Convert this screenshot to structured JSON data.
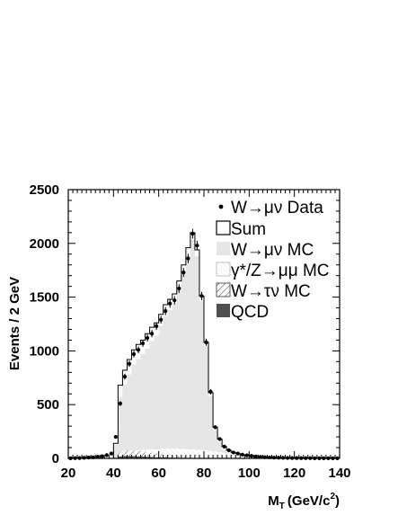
{
  "chart_data": {
    "type": "bar",
    "subtype": "stacked-histogram-with-data-points",
    "xlabel": "M",
    "xlabel_sub": "T",
    "xlabel_units": "(GeV/c",
    "xlabel_units_sup": "2",
    "xlabel_units_close": ")",
    "ylabel": "Events / 2 GeV",
    "xlim": [
      20,
      140
    ],
    "ylim": [
      0,
      2500
    ],
    "xticks": [
      "20",
      "40",
      "60",
      "80",
      "100",
      "120",
      "140"
    ],
    "yticks": [
      "0",
      "500",
      "1000",
      "1500",
      "2000",
      "2500"
    ],
    "bin_width": 2,
    "bin_centers": [
      21,
      23,
      25,
      27,
      29,
      31,
      33,
      35,
      37,
      39,
      41,
      43,
      45,
      47,
      49,
      51,
      53,
      55,
      57,
      59,
      61,
      63,
      65,
      67,
      69,
      71,
      73,
      75,
      77,
      79,
      81,
      83,
      85,
      87,
      89,
      91,
      93,
      95,
      97,
      99,
      101,
      103,
      105,
      107,
      109,
      111,
      113,
      115,
      117,
      119,
      121,
      123,
      125,
      127,
      129,
      131,
      133,
      135,
      137,
      139
    ],
    "series": [
      {
        "name": "W→μν Data",
        "values": [
          1,
          2,
          3,
          5,
          8,
          10,
          15,
          20,
          30,
          45,
          200,
          510,
          760,
          880,
          970,
          1010,
          1070,
          1120,
          1160,
          1230,
          1290,
          1370,
          1440,
          1470,
          1580,
          1730,
          1860,
          2090,
          1980,
          1510,
          1080,
          620,
          290,
          180,
          110,
          75,
          55,
          45,
          35,
          28,
          23,
          18,
          14,
          11,
          9,
          7,
          6,
          5,
          4,
          3,
          3,
          2,
          2,
          2,
          1,
          1,
          1,
          1,
          1,
          1
        ]
      },
      {
        "name": "Sum",
        "values": [
          0,
          0,
          0,
          0,
          0,
          0,
          0,
          0,
          0,
          0,
          140,
          680,
          820,
          920,
          1010,
          1060,
          1100,
          1160,
          1220,
          1260,
          1340,
          1430,
          1480,
          1530,
          1650,
          1800,
          1960,
          2100,
          1940,
          1510,
          1080,
          610,
          290,
          180,
          110,
          75,
          55,
          45,
          35,
          28,
          23,
          18,
          14,
          11,
          9,
          7,
          6,
          5,
          4,
          3,
          3,
          2,
          2,
          2,
          1,
          1,
          1,
          1,
          1,
          1
        ]
      },
      {
        "name": "W→μν MC",
        "values": [
          0,
          0,
          0,
          0,
          0,
          0,
          0,
          0,
          0,
          0,
          125,
          570,
          690,
          780,
          870,
          920,
          970,
          1020,
          1090,
          1140,
          1230,
          1320,
          1380,
          1440,
          1560,
          1720,
          1880,
          2030,
          1880,
          1460,
          1040,
          580,
          260,
          150,
          80,
          50,
          32,
          22,
          15,
          10,
          7,
          5,
          3,
          2,
          1,
          1,
          1,
          1,
          0,
          0,
          0,
          0,
          0,
          0,
          0,
          0,
          0,
          0,
          0,
          0
        ]
      },
      {
        "name": "γ*/Z→μμ MC",
        "values": [
          0,
          0,
          0,
          0,
          0,
          0,
          0,
          0,
          0,
          0,
          8,
          30,
          50,
          60,
          70,
          75,
          80,
          82,
          85,
          85,
          88,
          90,
          92,
          92,
          90,
          88,
          86,
          84,
          80,
          76,
          72,
          68,
          64,
          58,
          52,
          46,
          40,
          34,
          28,
          24,
          20,
          16,
          13,
          10,
          8,
          6,
          5,
          4,
          3,
          3,
          2,
          2,
          2,
          2,
          1,
          1,
          1,
          1,
          1,
          1
        ]
      },
      {
        "name": "W→τν MC",
        "values": [
          0,
          0,
          0,
          0,
          0,
          0,
          0,
          0,
          0,
          0,
          10,
          55,
          70,
          72,
          70,
          68,
          62,
          58,
          52,
          46,
          40,
          34,
          28,
          22,
          18,
          14,
          10,
          7,
          4,
          2,
          1,
          1,
          0,
          0,
          0,
          0,
          0,
          0,
          0,
          0,
          0,
          0,
          0,
          0,
          0,
          0,
          0,
          0,
          0,
          0,
          0,
          0,
          0,
          0,
          0,
          0,
          0,
          0,
          0,
          0
        ]
      },
      {
        "name": "QCD",
        "values": [
          0,
          0,
          0,
          0,
          0,
          0,
          0,
          0,
          0,
          0,
          5,
          18,
          22,
          22,
          20,
          18,
          16,
          14,
          12,
          10,
          9,
          8,
          7,
          6,
          5,
          4,
          3,
          3,
          2,
          2,
          1,
          1,
          1,
          0,
          0,
          0,
          0,
          0,
          0,
          0,
          0,
          0,
          0,
          0,
          0,
          0,
          0,
          0,
          0,
          0,
          0,
          0,
          0,
          0,
          0,
          0,
          0,
          0,
          0,
          0
        ]
      }
    ],
    "legend": [
      {
        "label": "W→μν Data",
        "style": "dot"
      },
      {
        "label": "Sum",
        "style": "open"
      },
      {
        "label": "W→μν MC",
        "style": "light-gray"
      },
      {
        "label": "γ*/Z→μμ MC",
        "style": "dotted-hatch"
      },
      {
        "label": "W→τν MC",
        "style": "diagonal-hatch"
      },
      {
        "label": "QCD",
        "style": "dark-gray"
      }
    ],
    "legend_position": "top-right",
    "colors": {
      "wmunu_mc": "#e6e6e6",
      "qcd": "#505050",
      "axis": "#000000"
    }
  }
}
